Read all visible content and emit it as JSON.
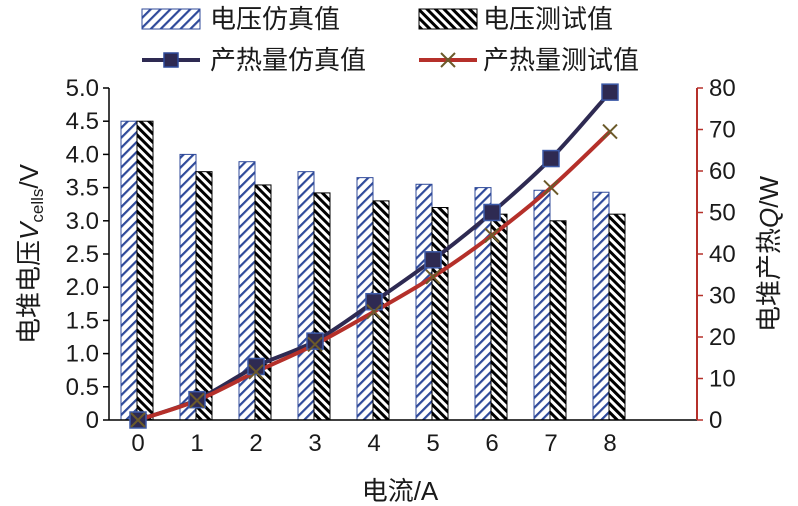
{
  "chart_data": {
    "type": "bar",
    "x": [
      0,
      1,
      2,
      3,
      4,
      5,
      6,
      7,
      8
    ],
    "xlabel": "电流/A",
    "ylabel_left": {
      "prefix": "电堆电压",
      "var": "V",
      "sub": "cells",
      "suffix": "/V"
    },
    "ylabel_right": {
      "prefix": "电堆产热",
      "var": "Q",
      "suffix": "/W"
    },
    "ylim_left": [
      0,
      5.0
    ],
    "ylim_right": [
      0,
      80
    ],
    "yticks_left": [
      "0",
      "0.5",
      "1.0",
      "1.5",
      "2.0",
      "2.5",
      "3.0",
      "3.5",
      "4.0",
      "4.5",
      "5.0"
    ],
    "yticks_right": [
      "0",
      "10",
      "20",
      "30",
      "40",
      "50",
      "60",
      "70",
      "80"
    ],
    "xticks": [
      "0",
      "1",
      "2",
      "3",
      "4",
      "5",
      "6",
      "7",
      "8"
    ],
    "grid": false,
    "legend_position": "top",
    "bar_series": [
      {
        "name": "电压仿真值",
        "axis": "left",
        "pattern": "diagonal-blue",
        "values": [
          4.5,
          4.0,
          3.89,
          3.74,
          3.65,
          3.55,
          3.5,
          3.46,
          3.43
        ]
      },
      {
        "name": "电压测试值",
        "axis": "left",
        "pattern": "diagonal-black",
        "values": [
          4.5,
          3.74,
          3.54,
          3.42,
          3.3,
          3.2,
          3.1,
          3.0,
          3.1
        ]
      }
    ],
    "line_series": [
      {
        "name": "产热量仿真值",
        "axis": "right",
        "color": "#2e2a52",
        "marker": "square",
        "values": [
          0,
          4.9,
          12.9,
          19,
          28.5,
          38.6,
          50,
          63,
          79
        ]
      },
      {
        "name": "产热量测试值",
        "axis": "right",
        "color": "#b5302a",
        "marker": "x",
        "values": [
          0,
          4.7,
          11.6,
          18.2,
          26.1,
          34.5,
          44.5,
          56,
          69.5
        ]
      }
    ]
  }
}
